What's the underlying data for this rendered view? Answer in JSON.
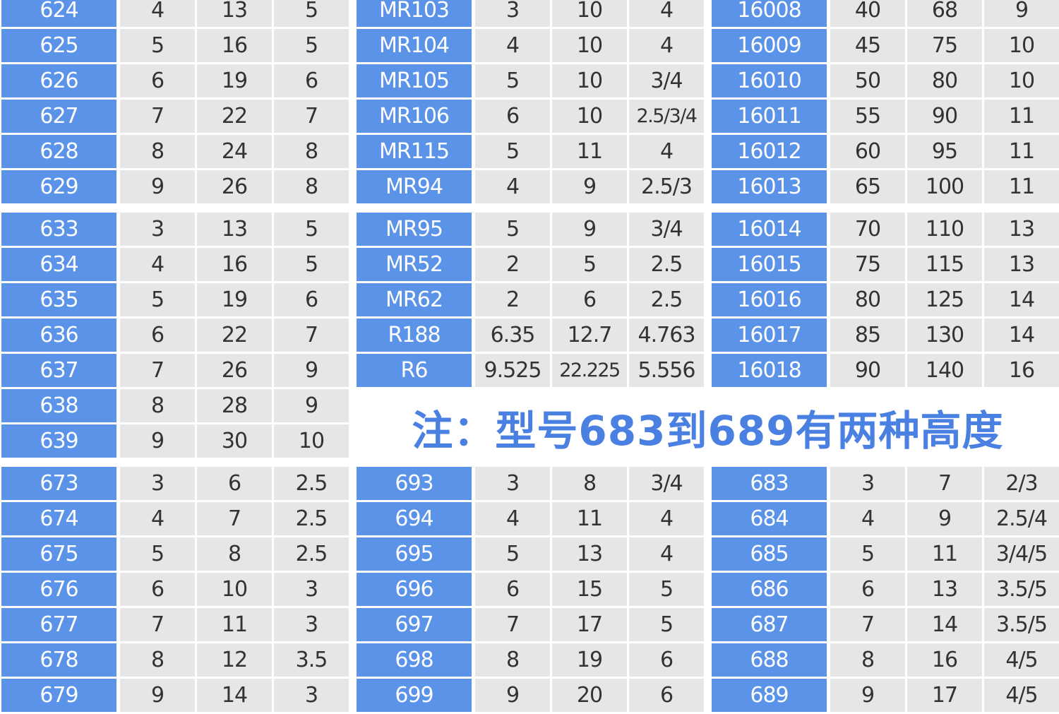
{
  "colors": {
    "label_bg": "#5b93e8",
    "value_bg": "#e6e6e6",
    "note_text": "#4a80e2"
  },
  "sections": [
    {
      "blocks": [
        {
          "rows": [
            [
              "624",
              "4",
              "13",
              "5"
            ],
            [
              "625",
              "5",
              "16",
              "5"
            ],
            [
              "626",
              "6",
              "19",
              "6"
            ],
            [
              "627",
              "7",
              "22",
              "7"
            ],
            [
              "628",
              "8",
              "24",
              "8"
            ],
            [
              "629",
              "9",
              "26",
              "8"
            ]
          ]
        },
        {
          "rows": [
            [
              "MR103",
              "3",
              "10",
              "4"
            ],
            [
              "MR104",
              "4",
              "10",
              "4"
            ],
            [
              "MR105",
              "5",
              "10",
              "3/4"
            ],
            [
              "MR106",
              "6",
              "10",
              "2.5/3/4"
            ],
            [
              "MR115",
              "5",
              "11",
              "4"
            ],
            [
              "MR94",
              "4",
              "9",
              "2.5/3"
            ]
          ]
        },
        {
          "rows": [
            [
              "16008",
              "40",
              "68",
              "9"
            ],
            [
              "16009",
              "45",
              "75",
              "10"
            ],
            [
              "16010",
              "50",
              "80",
              "10"
            ],
            [
              "16011",
              "55",
              "90",
              "11"
            ],
            [
              "16012",
              "60",
              "95",
              "11"
            ],
            [
              "16013",
              "65",
              "100",
              "11"
            ]
          ]
        }
      ]
    },
    {
      "blocks": [
        {
          "rows": [
            [
              "633",
              "3",
              "13",
              "5"
            ],
            [
              "634",
              "4",
              "16",
              "5"
            ],
            [
              "635",
              "5",
              "19",
              "6"
            ],
            [
              "636",
              "6",
              "22",
              "7"
            ],
            [
              "637",
              "7",
              "26",
              "9"
            ],
            [
              "638",
              "8",
              "28",
              "9"
            ],
            [
              "639",
              "9",
              "30",
              "10"
            ]
          ]
        },
        {
          "rows": [
            [
              "MR95",
              "5",
              "9",
              "3/4"
            ],
            [
              "MR52",
              "2",
              "5",
              "2.5"
            ],
            [
              "MR62",
              "2",
              "6",
              "2.5"
            ],
            [
              "R188",
              "6.35",
              "12.7",
              "4.763"
            ],
            [
              "R6",
              "9.525",
              "22.225",
              "5.556"
            ]
          ]
        },
        {
          "rows": [
            [
              "16014",
              "70",
              "110",
              "13"
            ],
            [
              "16015",
              "75",
              "115",
              "13"
            ],
            [
              "16016",
              "80",
              "125",
              "14"
            ],
            [
              "16017",
              "85",
              "130",
              "14"
            ],
            [
              "16018",
              "90",
              "140",
              "16"
            ]
          ]
        }
      ]
    },
    {
      "blocks": [
        {
          "rows": [
            [
              "673",
              "3",
              "6",
              "2.5"
            ],
            [
              "674",
              "4",
              "7",
              "2.5"
            ],
            [
              "675",
              "5",
              "8",
              "2.5"
            ],
            [
              "676",
              "6",
              "10",
              "3"
            ],
            [
              "677",
              "7",
              "11",
              "3"
            ],
            [
              "678",
              "8",
              "12",
              "3.5"
            ],
            [
              "679",
              "9",
              "14",
              "3"
            ]
          ]
        },
        {
          "rows": [
            [
              "693",
              "3",
              "8",
              "3/4"
            ],
            [
              "694",
              "4",
              "11",
              "4"
            ],
            [
              "695",
              "5",
              "13",
              "4"
            ],
            [
              "696",
              "6",
              "15",
              "5"
            ],
            [
              "697",
              "7",
              "17",
              "5"
            ],
            [
              "698",
              "8",
              "19",
              "6"
            ],
            [
              "699",
              "9",
              "20",
              "6"
            ]
          ]
        },
        {
          "rows": [
            [
              "683",
              "3",
              "7",
              "2/3"
            ],
            [
              "684",
              "4",
              "9",
              "2.5/4"
            ],
            [
              "685",
              "5",
              "11",
              "3/4/5"
            ],
            [
              "686",
              "6",
              "13",
              "3.5/5"
            ],
            [
              "687",
              "7",
              "14",
              "3.5/5"
            ],
            [
              "688",
              "8",
              "16",
              "4/5"
            ],
            [
              "689",
              "9",
              "17",
              "4/5"
            ]
          ]
        }
      ]
    }
  ],
  "note": "注：型号683到689有两种高度"
}
